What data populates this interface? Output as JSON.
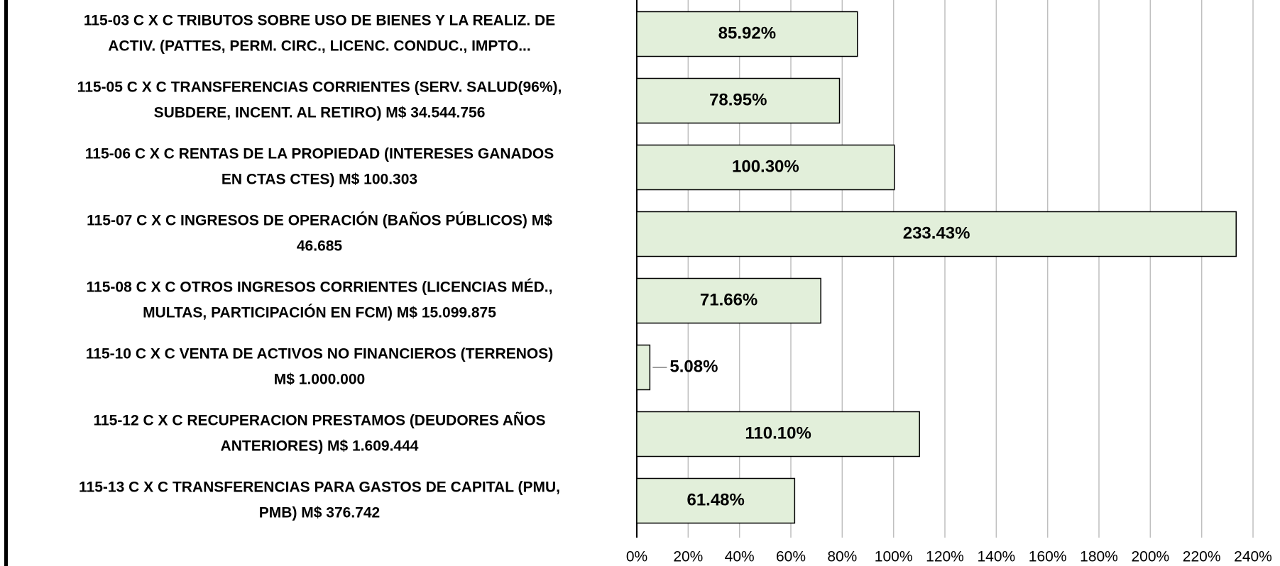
{
  "chart_data": {
    "type": "hbar",
    "categories": [
      [
        "115-03 C X C TRIBUTOS SOBRE USO DE BIENES Y LA REALIZ. DE",
        "ACTIV. (PATTES, PERM. CIRC., LICENC. CONDUC., IMPTO..."
      ],
      [
        "115-05 C X C TRANSFERENCIAS CORRIENTES (SERV. SALUD(96%),",
        "SUBDERE, INCENT. AL RETIRO) M$ 34.544.756"
      ],
      [
        "115-06 C X C RENTAS DE LA PROPIEDAD (INTERESES GANADOS",
        "EN CTAS CTES) M$ 100.303"
      ],
      [
        "115-07 C X C INGRESOS DE OPERACIÓN (BAÑOS PÚBLICOS) M$",
        "46.685"
      ],
      [
        "115-08 C X C OTROS INGRESOS CORRIENTES (LICENCIAS MÉD.,",
        "MULTAS, PARTICIPACIÓN EN FCM) M$ 15.099.875"
      ],
      [
        "115-10 C X C VENTA DE ACTIVOS NO FINANCIEROS (TERRENOS)",
        "M$ 1.000.000"
      ],
      [
        "115-12 C X C RECUPERACION PRESTAMOS (DEUDORES AÑOS",
        "ANTERIORES) M$ 1.609.444"
      ],
      [
        "115-13 C X C TRANSFERENCIAS PARA GASTOS DE CAPITAL (PMU,",
        "PMB) M$ 376.742"
      ]
    ],
    "values": [
      85.92,
      78.95,
      100.3,
      233.43,
      71.66,
      5.08,
      110.1,
      61.48
    ],
    "value_labels": [
      "85.92%",
      "78.95%",
      "100.30%",
      "233.43%",
      "71.66%",
      "5.08%",
      "110.10%",
      "61.48%"
    ],
    "color": "#e2efda",
    "xlim": [
      0,
      240
    ],
    "xticks": [
      {
        "value": 0,
        "label": "0%"
      },
      {
        "value": 20,
        "label": "20%"
      },
      {
        "value": 40,
        "label": "40%"
      },
      {
        "value": 60,
        "label": "60%"
      },
      {
        "value": 80,
        "label": "80%"
      },
      {
        "value": 100,
        "label": "100%"
      },
      {
        "value": 120,
        "label": "120%"
      },
      {
        "value": 140,
        "label": "140%"
      },
      {
        "value": 160,
        "label": "160%"
      },
      {
        "value": 180,
        "label": "180%"
      },
      {
        "value": 200,
        "label": "200%"
      },
      {
        "value": 220,
        "label": "220%"
      },
      {
        "value": 240,
        "label": "240%"
      }
    ],
    "grid": true
  }
}
